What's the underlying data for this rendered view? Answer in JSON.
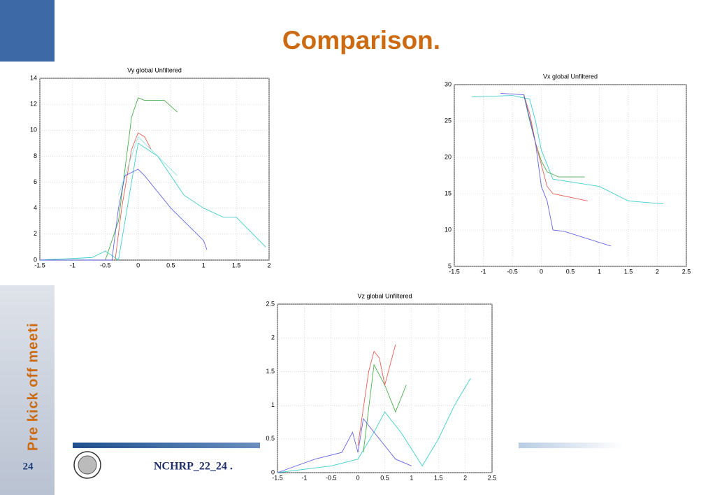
{
  "slide": {
    "title": "Comparison.",
    "sidebar": "Pre kick off meeti",
    "page_number": "24",
    "footer": "NCHRP_22_24 ."
  },
  "chart_data": [
    {
      "type": "line",
      "title": "Vy global Unfiltered",
      "grid": true,
      "xlim": [
        -1.5,
        2
      ],
      "ylim": [
        0,
        14
      ],
      "xticks": [
        -1.5,
        -1,
        -0.5,
        0,
        0.5,
        1,
        1.5,
        2
      ],
      "yticks": [
        0,
        2,
        4,
        6,
        8,
        10,
        12,
        14
      ],
      "series": [
        {
          "color": "#2ca02c",
          "x": [
            -0.5,
            -0.3,
            -0.2,
            -0.1,
            0,
            0.1,
            0.4,
            0.6
          ],
          "values": [
            0,
            3,
            7,
            11,
            12.5,
            12.3,
            12.3,
            11.4
          ]
        },
        {
          "color": "#e0443c",
          "x": [
            -0.35,
            -0.25,
            -0.1,
            0,
            0.1,
            0.2
          ],
          "values": [
            0,
            4,
            8.5,
            9.8,
            9.5,
            8.5
          ]
        },
        {
          "color": "#7fe0e0",
          "x": [
            -0.3,
            0,
            0.3,
            0.6
          ],
          "values": [
            5,
            9.5,
            8,
            6.5
          ]
        },
        {
          "color": "#21c4c4",
          "x": [
            -1.5,
            -0.7,
            -0.5,
            -0.3,
            -0.1,
            0,
            0.3,
            0.7,
            1,
            1.3,
            1.5,
            1.95
          ],
          "values": [
            0,
            0.2,
            0.7,
            0,
            6,
            9,
            8,
            5,
            4,
            3.3,
            3.3,
            1
          ]
        },
        {
          "color": "#4a4ae0",
          "x": [
            -1.5,
            -0.4,
            -0.3,
            -0.2,
            0,
            0.1,
            0.5,
            1,
            1.05
          ],
          "values": [
            0,
            0,
            4,
            6.5,
            7,
            6.5,
            4,
            1.5,
            0.8
          ]
        }
      ]
    },
    {
      "type": "line",
      "title": "Vx global Unfiltered",
      "grid": true,
      "xlim": [
        -1.5,
        2.5
      ],
      "ylim": [
        5,
        30
      ],
      "xticks": [
        -1.5,
        -1,
        -0.5,
        0,
        0.5,
        1,
        1.5,
        2,
        2.5
      ],
      "yticks": [
        5,
        10,
        15,
        20,
        25,
        30
      ],
      "series": [
        {
          "color": "#21c4c4",
          "x": [
            -1.2,
            -0.5,
            -0.2,
            -0.1,
            0,
            0.2,
            0.6,
            1,
            1.5,
            2.1
          ],
          "values": [
            28.3,
            28.5,
            28,
            25,
            21,
            17,
            16.5,
            16,
            14,
            13.6
          ]
        },
        {
          "color": "#2ca02c",
          "x": [
            -0.3,
            -0.2,
            -0.1,
            0,
            0.1,
            0.3,
            0.75
          ],
          "values": [
            28.5,
            25,
            22,
            19.5,
            18,
            17.3,
            17.3
          ]
        },
        {
          "color": "#e0443c",
          "x": [
            -0.3,
            -0.2,
            -0.1,
            0,
            0.1,
            0.2,
            0.8
          ],
          "values": [
            28.5,
            26,
            22,
            19,
            16,
            15,
            14
          ]
        },
        {
          "color": "#4a4ae0",
          "x": [
            -0.7,
            -0.3,
            -0.1,
            0,
            0.1,
            0.2,
            0.4,
            1.2
          ],
          "values": [
            28.8,
            28.6,
            22,
            16,
            14,
            10,
            9.8,
            7.8
          ]
        }
      ]
    },
    {
      "type": "line",
      "title": "Vz global Unfiltered",
      "grid": true,
      "xlim": [
        -1.5,
        2.5
      ],
      "ylim": [
        0,
        2.5
      ],
      "xticks": [
        -1.5,
        -1,
        -0.5,
        0,
        0.5,
        1,
        1.5,
        2,
        2.5
      ],
      "yticks": [
        0,
        0.5,
        1,
        1.5,
        2,
        2.5
      ],
      "series": [
        {
          "color": "#21c4c4",
          "x": [
            -1.5,
            -0.5,
            0,
            0.3,
            0.5,
            0.8,
            1.2,
            1.5,
            1.8,
            2.1
          ],
          "values": [
            0,
            0.1,
            0.2,
            0.6,
            0.9,
            0.6,
            0.1,
            0.5,
            1,
            1.4
          ]
        },
        {
          "color": "#2ca02c",
          "x": [
            0.1,
            0.3,
            0.5,
            0.7,
            0.9
          ],
          "values": [
            0.3,
            1.6,
            1.3,
            0.9,
            1.3
          ]
        },
        {
          "color": "#e0443c",
          "x": [
            0,
            0.2,
            0.3,
            0.4,
            0.5,
            0.7
          ],
          "values": [
            0.4,
            1.5,
            1.8,
            1.7,
            1.3,
            1.9
          ]
        },
        {
          "color": "#4a4ae0",
          "x": [
            -1.5,
            -0.8,
            -0.3,
            -0.1,
            0,
            0.1,
            0.4,
            0.7,
            1
          ],
          "values": [
            0,
            0.2,
            0.3,
            0.6,
            0.3,
            0.8,
            0.5,
            0.2,
            0.1
          ]
        }
      ]
    }
  ]
}
